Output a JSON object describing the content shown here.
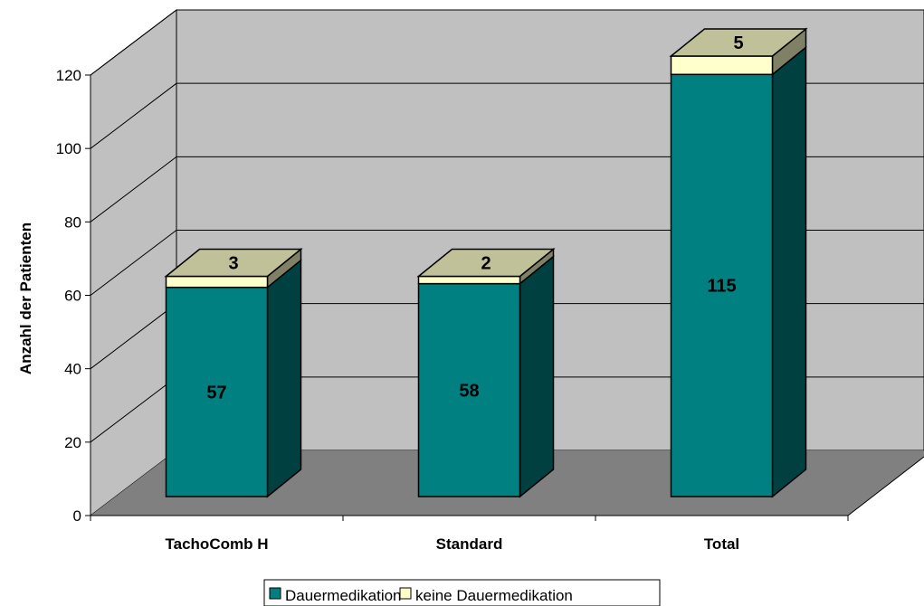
{
  "chart_data": {
    "type": "bar",
    "stacked": true,
    "three_d": true,
    "title": "",
    "xlabel": "",
    "ylabel": "Anzahl der Patienten",
    "ylim": [
      0,
      120
    ],
    "yticks": [
      0,
      20,
      40,
      60,
      80,
      100,
      120
    ],
    "grid": true,
    "legend_position": "bottom",
    "categories": [
      "TachoComb H",
      "Standard",
      "Total"
    ],
    "series": [
      {
        "name": "Dauermedikation",
        "values": [
          57,
          58,
          115
        ],
        "color": "#008080"
      },
      {
        "name": "keine Dauermedikation",
        "values": [
          3,
          2,
          5
        ],
        "color": "#FFFFCC"
      }
    ],
    "colors": {
      "back_wall": "#C0C0C0",
      "side_wall": "#C0C0C0",
      "floor": "#808080",
      "bar_side_dauer": "#004040",
      "bar_side_keine": "#808066",
      "bar_top_keine": "#C0C099"
    }
  }
}
